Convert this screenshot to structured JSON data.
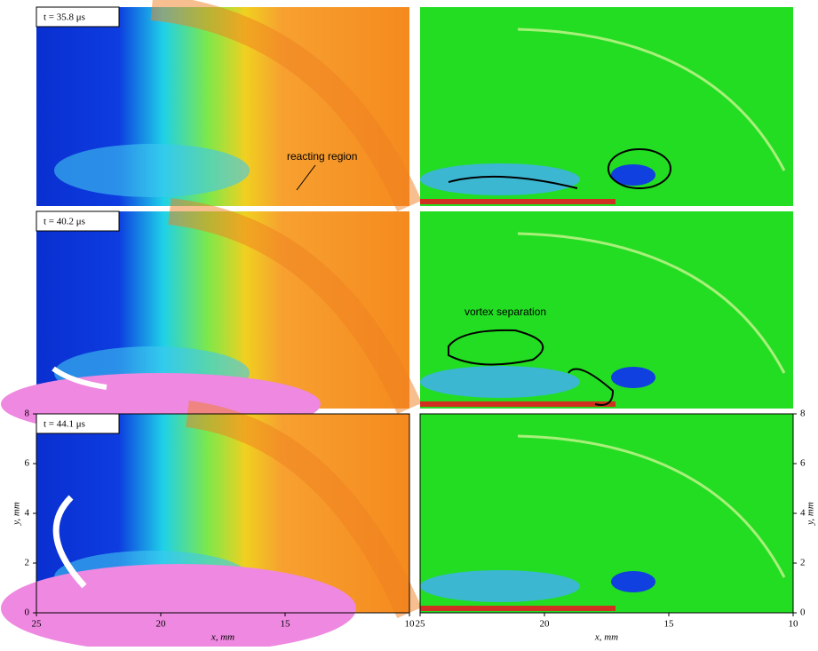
{
  "panels": [
    {
      "time_label": "t = 35.8 μs",
      "annotation": "reacting region"
    },
    {
      "time_label": "t = 40.2 μs",
      "annotation": "vortex separation"
    },
    {
      "time_label": "t = 44.1 μs"
    }
  ],
  "axes": {
    "x_label": "x, mm",
    "y_label": "y, mm",
    "xlim": [
      25,
      10
    ],
    "xticks": [
      25,
      20,
      15,
      10
    ],
    "ylim": [
      0,
      8
    ],
    "yticks": [
      0,
      2,
      4,
      6,
      8
    ]
  }
}
